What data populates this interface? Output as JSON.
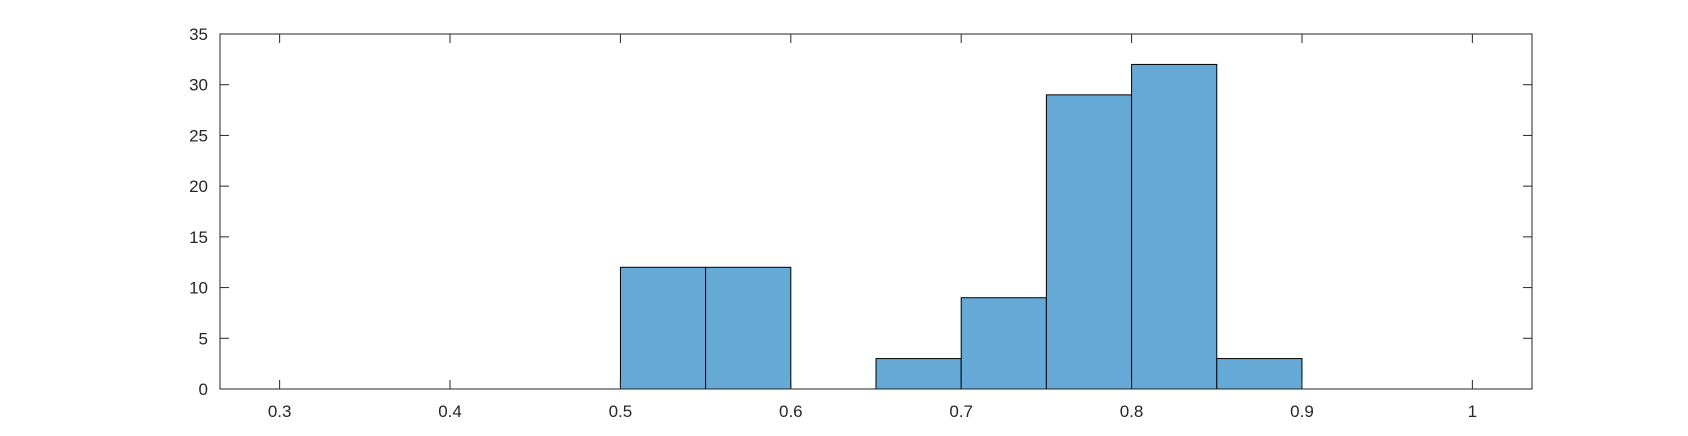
{
  "chart_data": {
    "type": "bar",
    "title": "",
    "xlabel": "",
    "ylabel": "",
    "xlim": [
      0.265,
      1.035
    ],
    "ylim": [
      0,
      35
    ],
    "xticks": [
      0.3,
      0.4,
      0.5,
      0.6,
      0.7,
      0.8,
      0.9,
      1
    ],
    "xtick_labels": [
      "0.3",
      "0.4",
      "0.5",
      "0.6",
      "0.7",
      "0.8",
      "0.9",
      "1"
    ],
    "yticks": [
      0,
      5,
      10,
      15,
      20,
      25,
      30,
      35
    ],
    "ytick_labels": [
      "0",
      "5",
      "10",
      "15",
      "20",
      "25",
      "30",
      "35"
    ],
    "bin_width": 0.05,
    "bins": [
      {
        "x0": 0.5,
        "x1": 0.55,
        "count": 12
      },
      {
        "x0": 0.55,
        "x1": 0.6,
        "count": 12
      },
      {
        "x0": 0.65,
        "x1": 0.7,
        "count": 3
      },
      {
        "x0": 0.7,
        "x1": 0.75,
        "count": 9
      },
      {
        "x0": 0.75,
        "x1": 0.8,
        "count": 29
      },
      {
        "x0": 0.8,
        "x1": 0.85,
        "count": 32
      },
      {
        "x0": 0.85,
        "x1": 0.9,
        "count": 3
      }
    ],
    "grid": false,
    "legend": false,
    "bar_color": "#65a9d7",
    "edge_color": "#000000"
  }
}
